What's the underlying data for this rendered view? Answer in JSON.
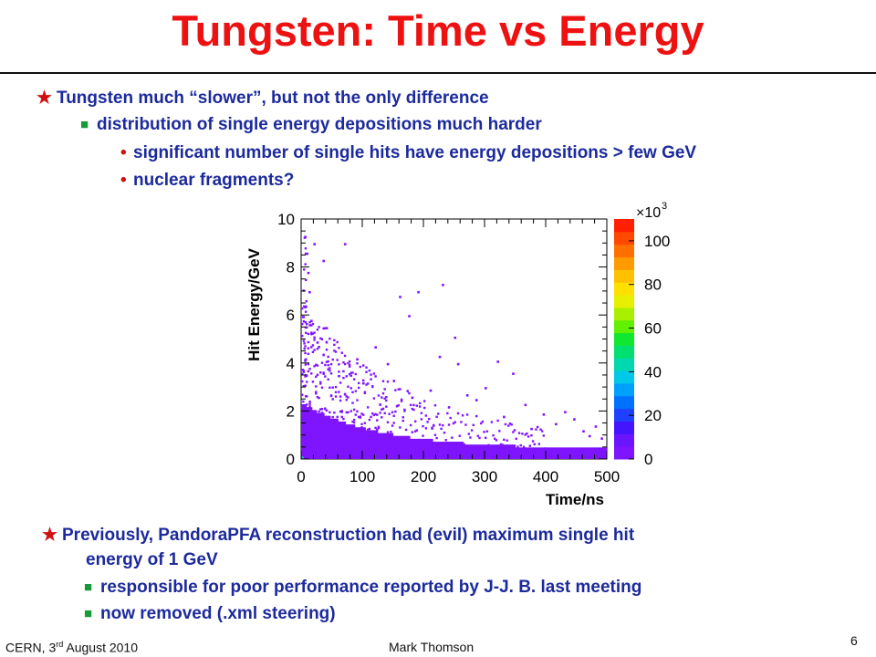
{
  "slide": {
    "title": "Tungsten: Time vs Energy",
    "bullets_top": [
      "Tungsten much “slower”, but not the only difference",
      "distribution of single energy depositions much harder",
      "significant number of single hits have energy depositions > few GeV",
      "nuclear fragments?"
    ],
    "bullets_bottom": [
      "Previously, PandoraPFA reconstruction had (evil) maximum single hit",
      "energy of 1 GeV",
      "responsible for poor performance reported by J-J. B. last meeting",
      "now removed (.xml steering)"
    ],
    "colors": {
      "title": "#ee1111",
      "text": "#1c2a9c",
      "star": "#d01010",
      "square": "#189a38"
    }
  },
  "footer": {
    "location_prefix": "CERN, 3",
    "location_sup": "rd",
    "location_suffix": " August 2010",
    "author": "Mark Thomson",
    "page": "6"
  },
  "chart_data": {
    "type": "heatmap",
    "xlabel": "Time/ns",
    "ylabel": "Hit Energy/GeV",
    "xlim": [
      0,
      500
    ],
    "ylim": [
      0,
      10
    ],
    "x_ticks": [
      "0",
      "100",
      "200",
      "300",
      "400",
      "500"
    ],
    "y_ticks": [
      "0",
      "2",
      "4",
      "6",
      "8",
      "10"
    ],
    "colorbar": {
      "multiplier": "×10",
      "exponent": "3",
      "range": [
        0,
        110
      ],
      "ticks": [
        "0",
        "20",
        "40",
        "60",
        "80",
        "100"
      ]
    },
    "description_points": [
      [
        5,
        9.3
      ],
      [
        8,
        8.6
      ],
      [
        10,
        7.8
      ],
      [
        12,
        7.0
      ],
      [
        6,
        6.4
      ],
      [
        15,
        5.8
      ],
      [
        20,
        9.0
      ],
      [
        35,
        8.3
      ],
      [
        70,
        9.0
      ],
      [
        140,
        4.0
      ],
      [
        160,
        6.8
      ],
      [
        175,
        6.0
      ],
      [
        190,
        7.0
      ],
      [
        225,
        4.3
      ],
      [
        250,
        5.1
      ],
      [
        255,
        4.0
      ],
      [
        285,
        2.5
      ],
      [
        320,
        4.1
      ],
      [
        345,
        3.6
      ],
      [
        395,
        1.9
      ],
      [
        430,
        2.0
      ],
      [
        470,
        1.0
      ],
      [
        480,
        1.4
      ],
      [
        490,
        0.9
      ],
      [
        120,
        4.7
      ],
      [
        230,
        7.3
      ],
      [
        60,
        3.5
      ],
      [
        100,
        3.2
      ],
      [
        210,
        2.9
      ],
      [
        270,
        2.7
      ],
      [
        300,
        3.0
      ],
      [
        365,
        2.3
      ],
      [
        415,
        1.5
      ],
      [
        445,
        1.7
      ],
      [
        460,
        1.2
      ],
      [
        40,
        5.5
      ],
      [
        25,
        4.9
      ],
      [
        90,
        4.2
      ],
      [
        150,
        3.3
      ],
      [
        180,
        2.6
      ],
      [
        240,
        2.2
      ],
      [
        330,
        1.8
      ],
      [
        375,
        1.3
      ]
    ]
  }
}
